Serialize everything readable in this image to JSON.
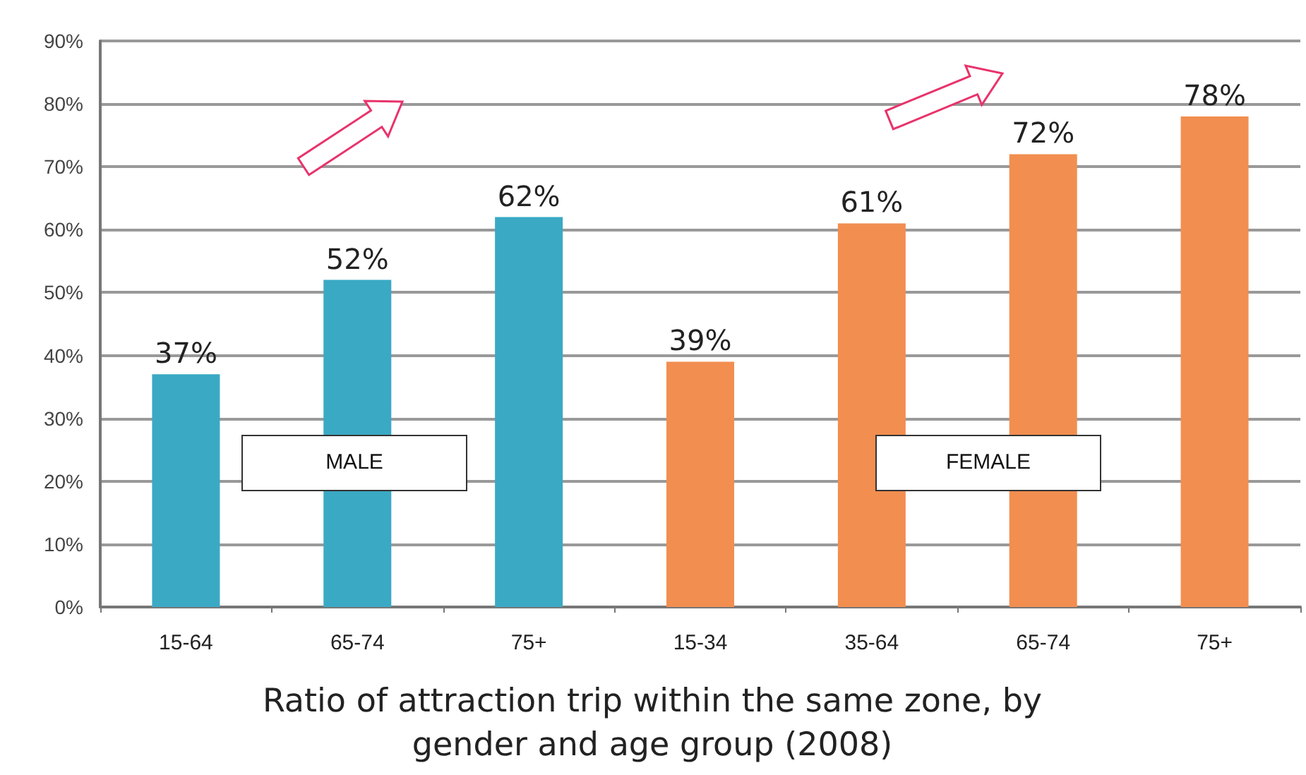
{
  "chart_data": {
    "type": "bar",
    "title": "Ratio of attraction trip within the same zone, by gender and age group (2008)",
    "categories": [
      "15-64",
      "65-74",
      "75+",
      "15-34",
      "35-64",
      "65-74",
      "75+"
    ],
    "values": [
      37,
      52,
      62,
      39,
      61,
      72,
      78
    ],
    "value_labels": [
      "37%",
      "52%",
      "62%",
      "39%",
      "61%",
      "72%",
      "78%"
    ],
    "colors": [
      "#3aa9c4",
      "#3aa9c4",
      "#3aa9c4",
      "#f28e50",
      "#f28e50",
      "#f28e50",
      "#f28e50"
    ],
    "ylim": [
      0,
      90
    ],
    "yticks": [
      {
        "value": 0,
        "label": "0%"
      },
      {
        "value": 10,
        "label": "10%"
      },
      {
        "value": 20,
        "label": "20%"
      },
      {
        "value": 30,
        "label": "30%"
      },
      {
        "value": 40,
        "label": "40%"
      },
      {
        "value": 50,
        "label": "50%"
      },
      {
        "value": 60,
        "label": "60%"
      },
      {
        "value": 70,
        "label": "70%"
      },
      {
        "value": 80,
        "label": "80%"
      },
      {
        "value": 90,
        "label": "90%"
      }
    ],
    "grid": "y",
    "annotations": [
      "MALE",
      "FEMALE"
    ]
  }
}
